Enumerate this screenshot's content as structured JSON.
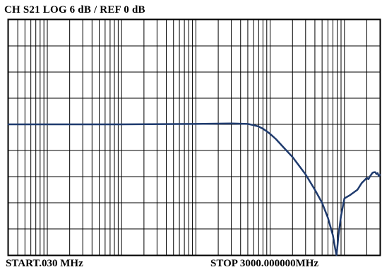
{
  "header": {
    "title": "CH S21 LOG 6 dB / REF 0 dB"
  },
  "footer": {
    "start": "START.030 MHz",
    "stop": "STOP 3000.000000MHz"
  },
  "colors": {
    "trace": "#1f3b6e",
    "grid": "#000000",
    "background": "#ffffff"
  },
  "chart_data": {
    "type": "line",
    "title": "CH S21 LOG 6 dB / REF 0 dB",
    "x_scale": "log",
    "xlim_mhz": [
      0.03,
      3000
    ],
    "ylim_db": [
      -30,
      24
    ],
    "y_per_div_db": 6,
    "ref_db": 0,
    "grid": true,
    "series": [
      {
        "name": "S21",
        "x_mhz": [
          0.03,
          0.1,
          1,
          10,
          30,
          50,
          60,
          70,
          80,
          90,
          100,
          120,
          150,
          200,
          300,
          400,
          500,
          600,
          700,
          750,
          780,
          800,
          830,
          900,
          1000,
          1200,
          1500,
          1700,
          2000,
          2100,
          2200,
          2300,
          2400,
          2500,
          2600,
          2700,
          2800,
          2900,
          3000
        ],
        "y_db": [
          0,
          0,
          0,
          0.1,
          0.2,
          0.1,
          -0.2,
          -0.5,
          -1,
          -1.6,
          -2.2,
          -3.4,
          -5.2,
          -7.5,
          -11.5,
          -15,
          -18,
          -21.5,
          -25.5,
          -28.5,
          -30,
          -28.5,
          -25.5,
          -21,
          -17,
          -16.2,
          -15,
          -13.5,
          -12.3,
          -12.6,
          -12,
          -11.5,
          -11.1,
          -11,
          -11,
          -11.4,
          -11.2,
          -11.9,
          -11.6
        ]
      }
    ]
  }
}
